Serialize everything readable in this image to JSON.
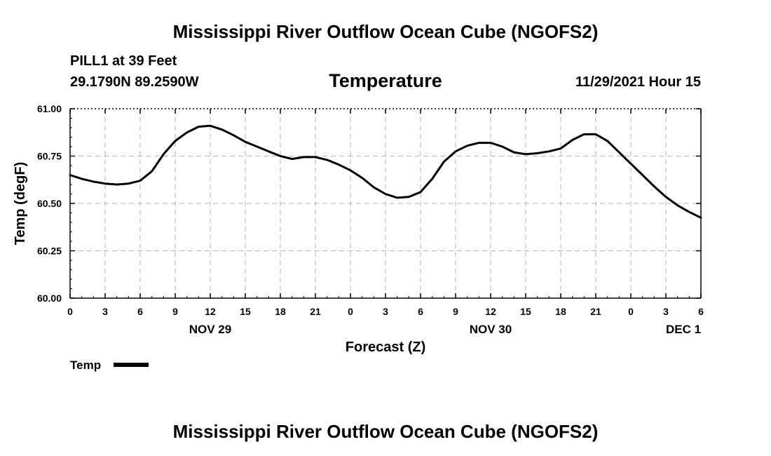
{
  "page": {
    "title": "Mississippi River Outflow Ocean Cube (NGOFS2)",
    "footer_title": "Mississippi River Outflow Ocean Cube (NGOFS2)"
  },
  "station": {
    "name_depth": "PILL1 at 39 Feet",
    "coords": "29.1790N  89.2590W"
  },
  "run_time": "11/29/2021 Hour 15",
  "chart_data": {
    "type": "line",
    "title": "Temperature",
    "xlabel": "Forecast (Z)",
    "ylabel": "Temp (degF)",
    "ylim": [
      60.0,
      61.0
    ],
    "yticks": [
      60.0,
      60.25,
      60.5,
      60.75,
      61.0
    ],
    "ytick_labels": [
      "60.00",
      "60.25",
      "60.50",
      "60.75",
      "61.00"
    ],
    "xlim": [
      0,
      54
    ],
    "xtick_hours": [
      0,
      3,
      6,
      9,
      12,
      15,
      18,
      21,
      24,
      27,
      30,
      33,
      36,
      39,
      42,
      45,
      48,
      51,
      54
    ],
    "xtick_labels": [
      "0",
      "3",
      "6",
      "9",
      "12",
      "15",
      "18",
      "21",
      "0",
      "3",
      "6",
      "9",
      "12",
      "15",
      "18",
      "21",
      "0",
      "3",
      "6"
    ],
    "date_labels": [
      {
        "hour": 12,
        "label": "NOV 29"
      },
      {
        "hour": 36,
        "label": "NOV 30"
      },
      {
        "hour": 52.5,
        "label": "DEC 1"
      }
    ],
    "grid": true,
    "legend_position": "bottom-left",
    "series": [
      {
        "name": "Temp",
        "color": "#000000",
        "x": [
          0,
          1,
          2,
          3,
          4,
          5,
          6,
          7,
          8,
          9,
          10,
          11,
          12,
          13,
          14,
          15,
          16,
          17,
          18,
          19,
          20,
          21,
          22,
          23,
          24,
          25,
          26,
          27,
          28,
          29,
          30,
          31,
          32,
          33,
          34,
          35,
          36,
          37,
          38,
          39,
          40,
          41,
          42,
          43,
          44,
          45,
          46,
          47,
          48,
          49,
          50,
          51,
          52,
          53,
          54
        ],
        "values": [
          60.65,
          60.63,
          60.615,
          60.605,
          60.6,
          60.605,
          60.62,
          60.67,
          60.76,
          60.83,
          60.875,
          60.905,
          60.91,
          60.89,
          60.86,
          60.825,
          60.8,
          60.775,
          60.75,
          60.735,
          60.745,
          60.745,
          60.73,
          60.705,
          60.675,
          60.635,
          60.585,
          60.55,
          60.53,
          60.535,
          60.56,
          60.63,
          60.72,
          60.775,
          60.805,
          60.82,
          60.82,
          60.8,
          60.77,
          60.76,
          60.765,
          60.775,
          60.79,
          60.835,
          60.865,
          60.865,
          60.83,
          60.77,
          60.71,
          60.65,
          60.59,
          60.535,
          60.49,
          60.455,
          60.425
        ]
      }
    ]
  }
}
